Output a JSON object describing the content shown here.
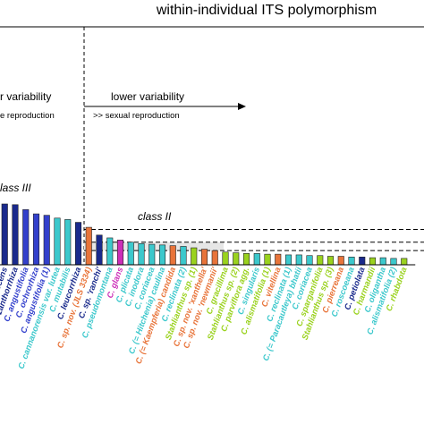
{
  "header": {
    "title": "within-individual ITS polymorphism"
  },
  "annotations": {
    "left_variability": "r variability",
    "left_reproduction": "e reproduction",
    "right_variability": "lower variability",
    "right_reproduction": ">> sexual reproduction",
    "class_iii": "lass III",
    "class_ii": "class II"
  },
  "colors": {
    "navy": "#1a2a8c",
    "blue": "#3340cc",
    "cyan": "#3cc8cc",
    "orange": "#e8743a",
    "magenta": "#cc2fb8",
    "green": "#9ad21e"
  },
  "chart_data": {
    "type": "bar",
    "categories": [
      "C. rubescens",
      "C. zanthorrhiza",
      "C. angustifolia",
      "C. ochrorhiza",
      "C. angustifolia (1)",
      "C. cannanorensis var. lutea",
      "C. mutabilis",
      "C. leucorrhiza",
      "C. sp. nov. (JLS 3334)",
      "C. sp. 'ranchi'",
      "C. pseudomontana",
      "C. glans",
      "C. plicata",
      "C. inodora",
      "C. coriacea",
      "C. (= Hitcheniа) caulina",
      "C. (= Kaempferia) candida",
      "C. reclinata (2)",
      "Stahlianthus sp. (1)",
      "C. sp. nov. 'xanthella'",
      "C. sp. nov. 'newmanii'",
      "C. gracillima",
      "Stahlianthus sp. (2)",
      "C. parviflora agg.",
      "C. singularis",
      "C. alismatifolia (1)",
      "C. vitellina",
      "C. reclinata (1)",
      "C. (= Paracautleya) bhatii",
      "C. coriacea",
      "C. sparganifolia",
      "Stahlianthus sp. (3)",
      "C. pierreana",
      "C. roscoeana",
      "C. petiolata",
      "C. harmandii",
      "C. oligantha",
      "C. alismatifolia (2)",
      "C. rhabdota"
    ],
    "values": [
      8.6,
      8.5,
      7.8,
      7.2,
      7.0,
      6.6,
      6.4,
      6.0,
      5.3,
      4.2,
      3.8,
      3.5,
      3.2,
      3.0,
      2.9,
      2.8,
      2.7,
      2.6,
      2.4,
      2.2,
      2.0,
      1.8,
      1.7,
      1.6,
      1.6,
      1.5,
      1.5,
      1.4,
      1.4,
      1.3,
      1.3,
      1.2,
      1.2,
      1.1,
      1.1,
      1.0,
      1.0,
      0.9,
      0.9
    ],
    "bar_colors": [
      "#1a2a8c",
      "#1a2a8c",
      "#3340cc",
      "#3340cc",
      "#3340cc",
      "#3cc8cc",
      "#3cc8cc",
      "#1a2a8c",
      "#e8743a",
      "#1a2a8c",
      "#3cc8cc",
      "#cc2fb8",
      "#3cc8cc",
      "#3cc8cc",
      "#3cc8cc",
      "#3cc8cc",
      "#e8743a",
      "#3cc8cc",
      "#9ad21e",
      "#e8743a",
      "#e8743a",
      "#9ad21e",
      "#9ad21e",
      "#9ad21e",
      "#3cc8cc",
      "#9ad21e",
      "#e8743a",
      "#3cc8cc",
      "#3cc8cc",
      "#3cc8cc",
      "#9ad21e",
      "#9ad21e",
      "#e8743a",
      "#3cc8cc",
      "#1a2a8c",
      "#9ad21e",
      "#3cc8cc",
      "#3cc8cc",
      "#9ad21e"
    ],
    "ylim": [
      0,
      12
    ],
    "class_iii_threshold": 5.0,
    "class_ii_threshold": 2.0,
    "class_ii_upper": 3.2
  }
}
